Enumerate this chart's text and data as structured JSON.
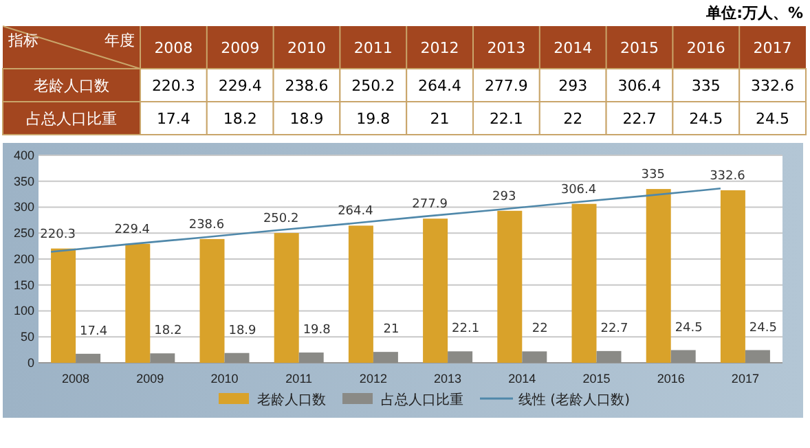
{
  "chart_data": {
    "type": "bar",
    "categories": [
      "2008",
      "2009",
      "2010",
      "2011",
      "2012",
      "2013",
      "2014",
      "2015",
      "2016",
      "2017"
    ],
    "series": [
      {
        "name": "老龄人口数",
        "color": "#d9a22a",
        "values": [
          220.3,
          229.4,
          238.6,
          250.2,
          264.4,
          277.9,
          293,
          306.4,
          335,
          332.6
        ],
        "value_labels": [
          "220.3",
          "229.4",
          "238.6",
          "250.2",
          "264.4",
          "277.9",
          "293",
          "306.4",
          "335",
          "332.6"
        ]
      },
      {
        "name": "占总人口比重",
        "color": "#8a8a86",
        "values": [
          17.4,
          18.2,
          18.9,
          19.8,
          21,
          22.1,
          22,
          22.7,
          24.5,
          24.5
        ],
        "value_labels": [
          "17.4",
          "18.2",
          "18.9",
          "19.8",
          "21",
          "22.1",
          "22",
          "22.7",
          "24.5",
          "24.5"
        ]
      },
      {
        "name": "线性 (老龄人口数)",
        "type": "line",
        "color": "#4f88aa",
        "values": [
          214,
          228,
          241,
          255,
          268,
          282,
          295,
          309,
          322,
          336
        ]
      }
    ],
    "ylim": [
      0,
      400
    ],
    "yticks": [
      0,
      50,
      100,
      150,
      200,
      250,
      300,
      350,
      400
    ],
    "grid": "y",
    "legend": "bottom",
    "annotations": [
      "单位:万人、%",
      "指标",
      "年度"
    ]
  }
}
